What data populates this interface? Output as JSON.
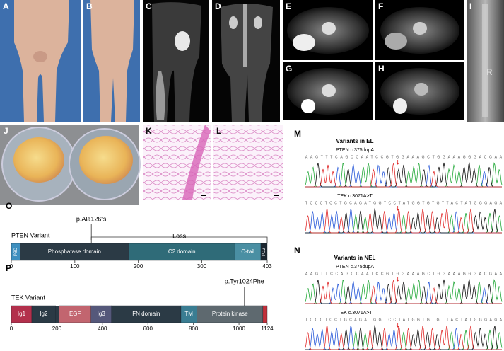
{
  "panel_labels": [
    "A",
    "B",
    "C",
    "D",
    "E",
    "F",
    "G",
    "H",
    "I",
    "J",
    "K",
    "L"
  ],
  "image_i_marker": "R",
  "m": {
    "label": "M",
    "title": "Variants in EL",
    "traces": [
      {
        "gene": "PTEN c.375dupA",
        "sequence": "AAGTTTCAGCCAATCCGTGGAAAGCTGGAAAGGGACGAA"
      },
      {
        "gene": "TEK c.3071A>T",
        "sequence": "TCCCTCCTGCAGATGGTCCTATGGTGTGTTACTATGGGAGA"
      }
    ]
  },
  "n": {
    "label": "N",
    "title": "Variants in NEL",
    "traces": [
      {
        "gene": "PTEN c.375dupA",
        "sequence": "AAGTTCCAGCCAATCCGTGGAAAGCTGGAAAGGGACGAA"
      },
      {
        "gene": "TEK c.3071A>T",
        "sequence": "TCCCTCCTGCAGATGGTCCTATGGTGTGTTACTATGGGAGA"
      }
    ]
  },
  "o": {
    "label": "O",
    "name": "PTEN Variant",
    "variant": "p.Ala126fs",
    "variant_position": 126,
    "loss_label": "Loss",
    "length": 403,
    "ticks": [
      0,
      100,
      200,
      300,
      403
    ],
    "domains": [
      {
        "label": "PBD",
        "start": 0,
        "end": 14,
        "color": "#3d8fbf",
        "vertical": true
      },
      {
        "label": "Phosphatase domain",
        "start": 14,
        "end": 185,
        "color": "#2b3a45"
      },
      {
        "label": "C2 domain",
        "start": 185,
        "end": 352,
        "color": "#2f6b78"
      },
      {
        "label": "C-tail",
        "start": 352,
        "end": 393,
        "color": "#4a8fa3"
      },
      {
        "label": "PDZ",
        "start": 393,
        "end": 403,
        "color": "#1c2730",
        "vertical": true
      }
    ]
  },
  "p": {
    "label": "P",
    "name": "TEK Variant",
    "variant": "p.Tyr1024Phe",
    "variant_position": 1024,
    "length": 1124,
    "ticks": [
      0,
      200,
      400,
      600,
      800,
      1000,
      1124
    ],
    "domains": [
      {
        "label": "Ig1",
        "start": 0,
        "end": 90,
        "color": "#b3304c"
      },
      {
        "label": "Ig2",
        "start": 90,
        "end": 195,
        "color": "#2b3a45"
      },
      {
        "label": "EGF",
        "start": 210,
        "end": 350,
        "color": "#c2656f"
      },
      {
        "label": "Ig3",
        "start": 350,
        "end": 440,
        "color": "#55587a"
      },
      {
        "label": "FN domain",
        "start": 440,
        "end": 745,
        "color": "#2b3a45"
      },
      {
        "label": "TM",
        "start": 745,
        "end": 815,
        "color": "#3a7d92"
      },
      {
        "label": "Protein kinase",
        "start": 815,
        "end": 1105,
        "color": "#5e696f"
      },
      {
        "start": 1105,
        "end": 1124,
        "color": "#c2303a"
      }
    ]
  }
}
